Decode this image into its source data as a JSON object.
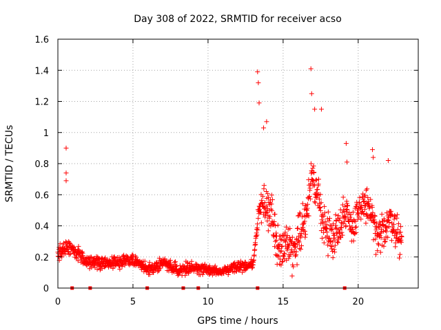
{
  "chart_data": {
    "type": "scatter",
    "title": "Day 308 of 2022, SRMTID for receiver acso",
    "xlabel": "GPS time / hours",
    "ylabel": "SRMTID / TECUs",
    "xlim": [
      0,
      24
    ],
    "ylim": [
      0,
      1.6
    ],
    "x_ticks": [
      0,
      5,
      10,
      15,
      20
    ],
    "x_tick_labels": [
      "0",
      "5",
      "10",
      "15",
      "20"
    ],
    "y_ticks": [
      0,
      0.2,
      0.4,
      0.6,
      0.8,
      1,
      1.2,
      1.4,
      1.6
    ],
    "y_tick_labels": [
      "0",
      "0.2",
      "0.4",
      "0.6",
      "0.8",
      "1",
      "1.2",
      "1.4",
      "1.6"
    ],
    "grid": true,
    "marker": "+",
    "series_color": "#ff0000",
    "grid_color": "#a0a0a0",
    "baseline_square_markers_x": [
      0.95,
      2.15,
      5.95,
      8.35,
      9.35,
      13.3,
      19.1
    ],
    "profile": [
      {
        "t": 0.0,
        "y": 0.22
      },
      {
        "t": 0.5,
        "y": 0.27
      },
      {
        "t": 1.0,
        "y": 0.25
      },
      {
        "t": 2.0,
        "y": 0.17
      },
      {
        "t": 3.0,
        "y": 0.16
      },
      {
        "t": 4.0,
        "y": 0.17
      },
      {
        "t": 5.0,
        "y": 0.18
      },
      {
        "t": 6.0,
        "y": 0.12
      },
      {
        "t": 7.0,
        "y": 0.16
      },
      {
        "t": 8.0,
        "y": 0.12
      },
      {
        "t": 9.0,
        "y": 0.13
      },
      {
        "t": 10.0,
        "y": 0.12
      },
      {
        "t": 11.0,
        "y": 0.1
      },
      {
        "t": 12.0,
        "y": 0.14
      },
      {
        "t": 13.0,
        "y": 0.15
      },
      {
        "t": 13.4,
        "y": 0.5
      },
      {
        "t": 13.8,
        "y": 0.55
      },
      {
        "t": 14.3,
        "y": 0.45
      },
      {
        "t": 14.7,
        "y": 0.25
      },
      {
        "t": 15.3,
        "y": 0.3
      },
      {
        "t": 15.7,
        "y": 0.22
      },
      {
        "t": 16.0,
        "y": 0.35
      },
      {
        "t": 16.5,
        "y": 0.45
      },
      {
        "t": 16.9,
        "y": 0.7
      },
      {
        "t": 17.3,
        "y": 0.6
      },
      {
        "t": 17.8,
        "y": 0.38
      },
      {
        "t": 18.3,
        "y": 0.32
      },
      {
        "t": 18.8,
        "y": 0.42
      },
      {
        "t": 19.2,
        "y": 0.5
      },
      {
        "t": 19.7,
        "y": 0.38
      },
      {
        "t": 20.3,
        "y": 0.55
      },
      {
        "t": 20.8,
        "y": 0.5
      },
      {
        "t": 21.3,
        "y": 0.3
      },
      {
        "t": 21.8,
        "y": 0.4
      },
      {
        "t": 22.2,
        "y": 0.45
      },
      {
        "t": 22.6,
        "y": 0.35
      },
      {
        "t": 22.9,
        "y": 0.3
      }
    ],
    "spread": [
      {
        "t": 0.0,
        "s": 0.08
      },
      {
        "t": 13.2,
        "s": 0.05
      },
      {
        "t": 13.4,
        "s": 0.22
      },
      {
        "t": 23.0,
        "s": 0.2
      }
    ],
    "outliers": [
      {
        "x": 0.55,
        "y": 0.9
      },
      {
        "x": 0.55,
        "y": 0.74
      },
      {
        "x": 0.55,
        "y": 0.69
      },
      {
        "x": 13.3,
        "y": 1.39
      },
      {
        "x": 13.35,
        "y": 1.32
      },
      {
        "x": 13.4,
        "y": 1.19
      },
      {
        "x": 16.85,
        "y": 1.41
      },
      {
        "x": 16.9,
        "y": 1.25
      },
      {
        "x": 17.1,
        "y": 1.15
      },
      {
        "x": 17.55,
        "y": 1.15
      },
      {
        "x": 19.2,
        "y": 0.93
      },
      {
        "x": 19.25,
        "y": 0.81
      },
      {
        "x": 20.95,
        "y": 0.89
      },
      {
        "x": 21.0,
        "y": 0.84
      },
      {
        "x": 22.0,
        "y": 0.82
      },
      {
        "x": 13.9,
        "y": 1.07
      },
      {
        "x": 13.7,
        "y": 1.03
      }
    ],
    "point_count": 1400
  }
}
